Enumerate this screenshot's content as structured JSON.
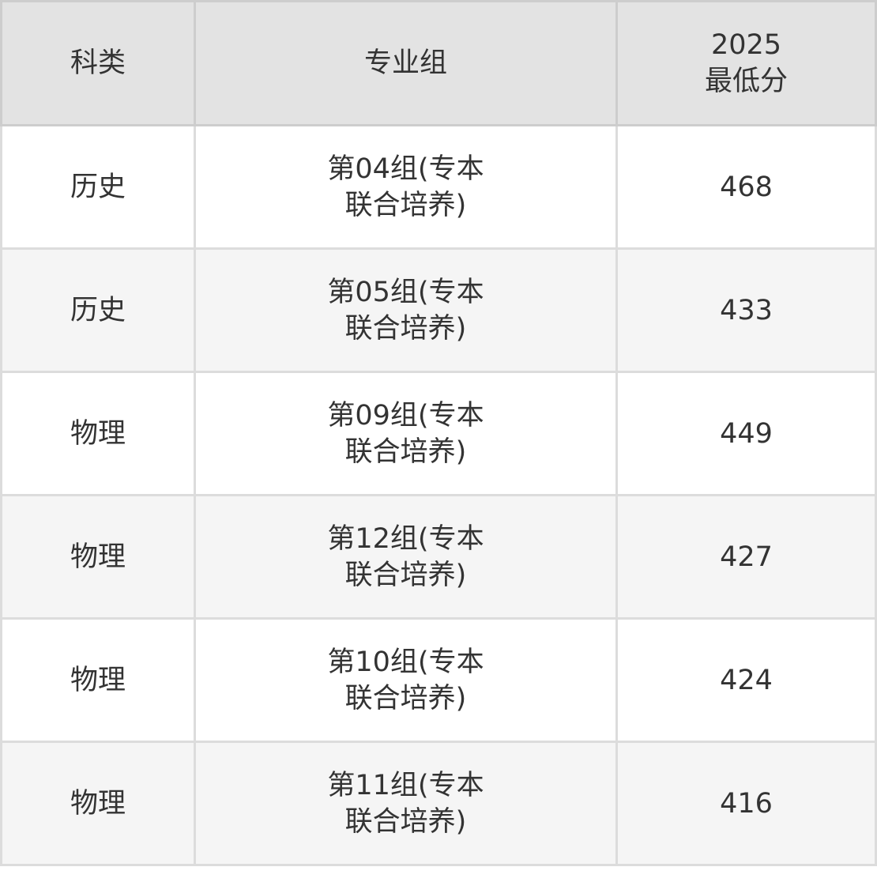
{
  "table": {
    "headers": [
      "科类",
      "专业组",
      "2025\n最低分"
    ],
    "header_lines": {
      "score_year": "2025",
      "score_label": "最低分"
    },
    "rows": [
      {
        "category": "历史",
        "group": "第04组(专本联合培养)",
        "min_score": "468"
      },
      {
        "category": "历史",
        "group": "第05组(专本联合培养)",
        "min_score": "433"
      },
      {
        "category": "物理",
        "group": "第09组(专本联合培养)",
        "min_score": "449"
      },
      {
        "category": "物理",
        "group": "第12组(专本联合培养)",
        "min_score": "427"
      },
      {
        "category": "物理",
        "group": "第10组(专本联合培养)",
        "min_score": "424"
      },
      {
        "category": "物理",
        "group": "第11组(专本联合培养)",
        "min_score": "416"
      }
    ]
  }
}
